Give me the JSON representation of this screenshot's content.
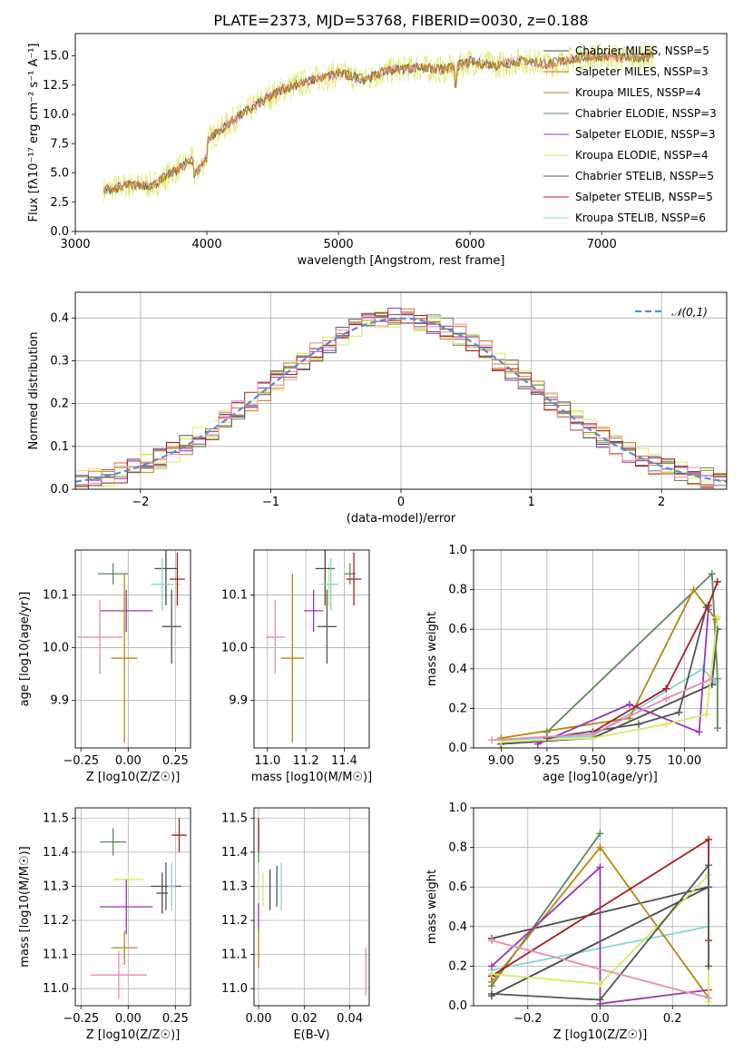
{
  "title": "PLATE=2373, MJD=53768, FIBERID=0030, z=0.188",
  "colors": {
    "series": [
      "#4a4a4a",
      "#e06c1e",
      "#b8860b",
      "#5a8a5a",
      "#9b35b0",
      "#d8e860",
      "#555555",
      "#a81c1c",
      "#7fd8d8"
    ],
    "grid": "#b0b0b0",
    "normal_curve": "#5b8ad6",
    "extra_pink": "#e88ab8",
    "extra_blue": "#5b8ad6"
  },
  "chart_data": [
    {
      "id": "spectrum",
      "type": "line",
      "xlabel": "wavelength [Angstrom, rest frame]",
      "ylabel": "Flux [fλ10⁻¹⁷ erg cm⁻² s⁻¹ A⁻¹]",
      "xlim": [
        3000,
        7950
      ],
      "ylim": [
        0,
        16.9
      ],
      "xticks": [
        "3000",
        "4000",
        "5000",
        "6000",
        "7000"
      ],
      "yticks": [
        "0.0",
        "2.5",
        "5.0",
        "7.5",
        "10.0",
        "12.5",
        "15.0"
      ],
      "legend": [
        "Chabrier MILES, NSSP=5",
        "Salpeter MILES, NSSP=3",
        "Kroupa MILES, NSSP=4",
        "Chabrier ELODIE, NSSP=3",
        "Salpeter ELODIE, NSSP=3",
        "Kroupa ELODIE, NSSP=4",
        "Chabrier STELIB, NSSP=5",
        "Salpeter STELIB, NSSP=5",
        "Kroupa STELIB, NSSP=6"
      ],
      "continuum_points": [
        [
          3200,
          3.5
        ],
        [
          3400,
          3.9
        ],
        [
          3600,
          4.0
        ],
        [
          3800,
          5.5
        ],
        [
          3900,
          6.2
        ],
        [
          4000,
          7.8
        ],
        [
          4200,
          9.5
        ],
        [
          4400,
          11.0
        ],
        [
          4600,
          12.3
        ],
        [
          4800,
          12.9
        ],
        [
          5000,
          13.5
        ],
        [
          5200,
          13.0
        ],
        [
          5400,
          13.8
        ],
        [
          5600,
          14.0
        ],
        [
          5800,
          13.8
        ],
        [
          6000,
          14.5
        ],
        [
          6200,
          14.2
        ],
        [
          6400,
          14.6
        ],
        [
          6600,
          14.3
        ],
        [
          6800,
          14.8
        ],
        [
          7000,
          15.0
        ],
        [
          7200,
          14.8
        ],
        [
          7400,
          15.0
        ]
      ]
    },
    {
      "id": "residuals",
      "type": "histogram",
      "xlabel": "(data-model)/error",
      "ylabel": "Normed distribution",
      "xlim": [
        -2.5,
        2.5
      ],
      "ylim": [
        0,
        0.46
      ],
      "xticks": [
        "−2",
        "−1",
        "0",
        "1",
        "2"
      ],
      "yticks": [
        "0.0",
        "0.1",
        "0.2",
        "0.3",
        "0.4"
      ],
      "legend": [
        "𝒩(0,1)"
      ],
      "bin_width": 0.1
    },
    {
      "id": "age-vs-Z",
      "type": "scatter",
      "xlabel": "Z [log10(Z/Z☉)]",
      "ylabel": "age  [log10(age/yr)]",
      "xlim": [
        -0.28,
        0.33
      ],
      "ylim": [
        9.81,
        10.185
      ],
      "xticks": [
        "−0.25",
        "0.00",
        "0.25"
      ],
      "yticks": [
        "9.9",
        "10.0",
        "10.1"
      ],
      "points": [
        {
          "x": 0.2,
          "y": 10.12,
          "xerr": 0.08,
          "yerr": 0.04,
          "c": 6
        },
        {
          "x": 0.2,
          "y": 10.15,
          "xerr": 0.06,
          "yerr": 0.07,
          "c": 1
        },
        {
          "x": 0.23,
          "y": 10.04,
          "xerr": 0.05,
          "yerr": 0.07,
          "c": 7
        },
        {
          "x": -0.08,
          "y": 10.14,
          "xerr": 0.08,
          "yerr": 0.02,
          "c": 4
        },
        {
          "x": 0.26,
          "y": 10.13,
          "xerr": 0.04,
          "yerr": 0.05,
          "c": 8
        },
        {
          "x": 0.18,
          "y": 10.12,
          "xerr": 0.06,
          "yerr": 0.05,
          "c": 9
        },
        {
          "x": -0.01,
          "y": 10.07,
          "xerr": 0.14,
          "yerr": 0.04,
          "c": 5
        },
        {
          "x": -0.15,
          "y": 10.02,
          "xerr": 0.12,
          "yerr": 0.07,
          "c": 10
        },
        {
          "x": -0.02,
          "y": 9.98,
          "xerr": 0.07,
          "yerr": 0.16,
          "c": 3
        }
      ]
    },
    {
      "id": "age-vs-mass",
      "type": "scatter",
      "xlabel": "mass [log10(M/M☉)]",
      "ylabel": "",
      "xlim": [
        10.93,
        11.53
      ],
      "ylim": [
        9.81,
        10.185
      ],
      "xticks": [
        "11.0",
        "11.2",
        "11.4"
      ],
      "yticks": [
        "9.9",
        "10.0",
        "10.1"
      ],
      "points": [
        {
          "x": 11.32,
          "y": 10.12,
          "xerr": 0.05,
          "yerr": 0.04,
          "c": 6
        },
        {
          "x": 11.3,
          "y": 10.15,
          "xerr": 0.05,
          "yerr": 0.07,
          "c": 1
        },
        {
          "x": 11.31,
          "y": 10.04,
          "xerr": 0.05,
          "yerr": 0.07,
          "c": 7
        },
        {
          "x": 11.43,
          "y": 10.14,
          "xerr": 0.03,
          "yerr": 0.02,
          "c": 4
        },
        {
          "x": 11.45,
          "y": 10.13,
          "xerr": 0.04,
          "yerr": 0.05,
          "c": 8
        },
        {
          "x": 11.33,
          "y": 10.12,
          "xerr": 0.04,
          "yerr": 0.05,
          "c": 9
        },
        {
          "x": 11.24,
          "y": 10.07,
          "xerr": 0.05,
          "yerr": 0.04,
          "c": 5
        },
        {
          "x": 11.04,
          "y": 10.02,
          "xerr": 0.05,
          "yerr": 0.07,
          "c": 10
        },
        {
          "x": 11.13,
          "y": 9.98,
          "xerr": 0.06,
          "yerr": 0.16,
          "c": 3
        }
      ]
    },
    {
      "id": "weight-vs-age",
      "type": "line",
      "xlabel": "age  [log10(age/yr)]",
      "ylabel": "mass weight",
      "xlim": [
        8.85,
        10.23
      ],
      "ylim": [
        0,
        1.0
      ],
      "xticks": [
        "9.00",
        "9.25",
        "9.50",
        "9.75",
        "10.00"
      ],
      "yticks": [
        "0.0",
        "0.2",
        "0.4",
        "0.6",
        "0.8",
        "1.0"
      ],
      "series": [
        {
          "c": 9,
          "points": [
            [
              9.0,
              0.04
            ],
            [
              9.5,
              0.06
            ],
            [
              10.1,
              0.4
            ],
            [
              10.17,
              0.33
            ]
          ]
        },
        {
          "c": 1,
          "points": [
            [
              9.0,
              0.02
            ],
            [
              9.5,
              0.05
            ],
            [
              10.15,
              0.32
            ],
            [
              10.18,
              0.6
            ]
          ]
        },
        {
          "c": 4,
          "points": [
            [
              9.25,
              0.08
            ],
            [
              10.15,
              0.88
            ],
            [
              10.18,
              0.35
            ],
            [
              10.18,
              0.1
            ]
          ]
        },
        {
          "c": 3,
          "points": [
            [
              9.0,
              0.05
            ],
            [
              9.7,
              0.15
            ],
            [
              10.05,
              0.8
            ],
            [
              10.17,
              0.65
            ]
          ]
        },
        {
          "c": 5,
          "points": [
            [
              9.2,
              0.02
            ],
            [
              9.7,
              0.22
            ],
            [
              10.08,
              0.08
            ],
            [
              10.13,
              0.7
            ]
          ]
        },
        {
          "c": 8,
          "points": [
            [
              9.5,
              0.08
            ],
            [
              9.9,
              0.3
            ],
            [
              10.13,
              0.72
            ],
            [
              10.18,
              0.84
            ]
          ]
        },
        {
          "c": 6,
          "points": [
            [
              9.0,
              0.03
            ],
            [
              9.5,
              0.05
            ],
            [
              9.9,
              0.12
            ],
            [
              10.12,
              0.17
            ],
            [
              10.18,
              0.66
            ]
          ]
        },
        {
          "c": 7,
          "points": [
            [
              9.25,
              0.05
            ],
            [
              9.75,
              0.12
            ],
            [
              9.97,
              0.18
            ],
            [
              10.12,
              0.71
            ]
          ]
        },
        {
          "c": 10,
          "points": [
            [
              8.95,
              0.04
            ],
            [
              9.5,
              0.07
            ],
            [
              9.9,
              0.25
            ],
            [
              10.15,
              0.35
            ]
          ]
        }
      ]
    },
    {
      "id": "mass-vs-Z",
      "type": "scatter",
      "xlabel": "Z [log10(Z/Z☉)]",
      "ylabel": "mass [log10(M/M☉)]",
      "xlim": [
        -0.28,
        0.33
      ],
      "ylim": [
        10.95,
        11.53
      ],
      "xticks": [
        "−0.25",
        "0.00",
        "0.25"
      ],
      "yticks": [
        "11.0",
        "11.1",
        "11.2",
        "11.3",
        "11.4",
        "11.5"
      ],
      "points": [
        {
          "x": 0.0,
          "y": 11.32,
          "xerr": 0.08,
          "yerr": 0.02,
          "c": 6
        },
        {
          "x": 0.18,
          "y": 11.28,
          "xerr": 0.03,
          "yerr": 0.06,
          "c": 1
        },
        {
          "x": 0.2,
          "y": 11.3,
          "xerr": 0.08,
          "yerr": 0.07,
          "c": 7
        },
        {
          "x": -0.08,
          "y": 11.43,
          "xerr": 0.07,
          "yerr": 0.04,
          "c": 4
        },
        {
          "x": 0.27,
          "y": 11.45,
          "xerr": 0.04,
          "yerr": 0.05,
          "c": 8
        },
        {
          "x": 0.23,
          "y": 11.3,
          "xerr": 0.02,
          "yerr": 0.07,
          "c": 9
        },
        {
          "x": -0.01,
          "y": 11.24,
          "xerr": 0.14,
          "yerr": 0.08,
          "c": 5
        },
        {
          "x": -0.05,
          "y": 11.04,
          "xerr": 0.15,
          "yerr": 0.07,
          "c": 10
        },
        {
          "x": -0.02,
          "y": 11.12,
          "xerr": 0.07,
          "yerr": 0.05,
          "c": 3
        }
      ]
    },
    {
      "id": "mass-vs-EBV",
      "type": "scatter",
      "xlabel": "E(B-V)",
      "ylabel": "",
      "xlim": [
        -0.002,
        0.0485
      ],
      "ylim": [
        10.95,
        11.53
      ],
      "xticks": [
        "0.00",
        "0.02",
        "0.04"
      ],
      "yticks": [
        "11.0",
        "11.1",
        "11.2",
        "11.3",
        "11.4",
        "11.5"
      ],
      "points": [
        {
          "x": 0.002,
          "y": 11.29,
          "xerr": 0,
          "yerr": 0.05,
          "c": 6
        },
        {
          "x": 0.005,
          "y": 11.29,
          "xerr": 0,
          "yerr": 0.06,
          "c": 1
        },
        {
          "x": 0.008,
          "y": 11.3,
          "xerr": 0,
          "yerr": 0.06,
          "c": 7
        },
        {
          "x": 0.0,
          "y": 11.43,
          "xerr": 0,
          "yerr": 0.06,
          "c": 4
        },
        {
          "x": 0.0,
          "y": 11.45,
          "xerr": 0,
          "yerr": 0.05,
          "c": 8
        },
        {
          "x": 0.01,
          "y": 11.3,
          "xerr": 0,
          "yerr": 0.07,
          "c": 9
        },
        {
          "x": 0.0,
          "y": 11.21,
          "xerr": 0,
          "yerr": 0.04,
          "c": 5
        },
        {
          "x": 0.047,
          "y": 11.05,
          "xerr": 0,
          "yerr": 0.07,
          "c": 10
        },
        {
          "x": 0.0,
          "y": 11.12,
          "xerr": 0,
          "yerr": 0.06,
          "c": 3
        }
      ]
    },
    {
      "id": "weight-vs-Z",
      "type": "line",
      "xlabel": "Z [log10(Z/Z☉)]",
      "ylabel": "mass weight",
      "xlim": [
        -0.35,
        0.35
      ],
      "ylim": [
        0,
        1.0
      ],
      "xticks": [
        "−0.2",
        "0.0",
        "0.2"
      ],
      "yticks": [
        "0.0",
        "0.2",
        "0.4",
        "0.6",
        "0.8",
        "1.0"
      ],
      "series": [
        {
          "c": 9,
          "points": [
            [
              -0.3,
              0.18
            ],
            [
              0.3,
              0.4
            ]
          ]
        },
        {
          "c": 1,
          "points": [
            [
              -0.3,
              0.05
            ],
            [
              0.3,
              0.6
            ],
            [
              -0.3,
              0.34
            ]
          ]
        },
        {
          "c": 4,
          "points": [
            [
              -0.3,
              0.1
            ],
            [
              0.0,
              0.87
            ]
          ]
        },
        {
          "c": 3,
          "points": [
            [
              -0.3,
              0.12
            ],
            [
              0.0,
              0.8
            ],
            [
              0.3,
              0.04
            ]
          ]
        },
        {
          "c": 5,
          "points": [
            [
              -0.3,
              0.2
            ],
            [
              0.0,
              0.7
            ],
            [
              0.0,
              0.01
            ],
            [
              0.3,
              0.08
            ]
          ]
        },
        {
          "c": 8,
          "points": [
            [
              -0.3,
              0.15
            ],
            [
              0.3,
              0.84
            ],
            [
              0.3,
              0.33
            ]
          ]
        },
        {
          "c": 6,
          "points": [
            [
              -0.3,
              0.16
            ],
            [
              0.0,
              0.11
            ],
            [
              0.3,
              0.66
            ],
            [
              0.3,
              0.02
            ]
          ]
        },
        {
          "c": 7,
          "points": [
            [
              -0.3,
              0.06
            ],
            [
              0.0,
              0.03
            ],
            [
              0.3,
              0.71
            ],
            [
              0.3,
              0.2
            ]
          ]
        },
        {
          "c": 10,
          "points": [
            [
              -0.3,
              0.33
            ],
            [
              0.3,
              0.04
            ]
          ]
        }
      ]
    }
  ]
}
